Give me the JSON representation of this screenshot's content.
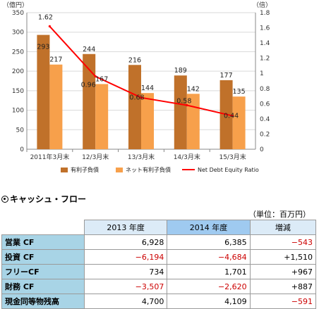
{
  "chart_data": {
    "type": "bar",
    "categories": [
      "2011年3月末",
      "12/3月末",
      "13/3月末",
      "14/3月末",
      "15/3月末"
    ],
    "y_left": {
      "label": "（億円）",
      "range": [
        0,
        350
      ],
      "ticks": [
        "0",
        "50",
        "100",
        "150",
        "200",
        "250",
        "300",
        "350"
      ]
    },
    "y_right": {
      "label": "（倍）",
      "range": [
        0,
        1.8
      ],
      "ticks": [
        "0",
        "0.2",
        "0.4",
        "0.6",
        "0.8",
        "1",
        "1.2",
        "1.4",
        "1.6",
        "1.8"
      ]
    },
    "series": [
      {
        "name": "有利子負債",
        "type": "bar",
        "axis": "left",
        "color": "#c0712a",
        "values": [
          293,
          244,
          216,
          189,
          177
        ]
      },
      {
        "name": "ネット有利子負債",
        "type": "bar",
        "axis": "left",
        "color": "#f7a04b",
        "values": [
          217,
          167,
          144,
          142,
          135
        ]
      },
      {
        "name": "Net Debt Equity Ratio",
        "type": "line",
        "axis": "right",
        "color": "#ff0000",
        "values": [
          1.62,
          0.96,
          0.68,
          0.58,
          0.44
        ],
        "labels": [
          "1.62",
          "0.96",
          "0.68",
          "0.58",
          "0.44"
        ]
      }
    ],
    "grid": true,
    "legend": "bottom"
  },
  "cashflow": {
    "title": "キャッシュ・フロー",
    "unit": "（単位：百万円）",
    "headers": [
      "2013 年度",
      "2014 年度",
      "増減"
    ],
    "rows": [
      {
        "label": "営業 CF",
        "v2013": "6,928",
        "v2014": "6,385",
        "change": "−543",
        "neg2013": false,
        "neg2014": false,
        "negChange": true
      },
      {
        "label": "投資 CF",
        "v2013": "−6,194",
        "v2014": "−4,684",
        "change": "+1,510",
        "neg2013": true,
        "neg2014": true,
        "negChange": false
      },
      {
        "label": "フリーCF",
        "v2013": "734",
        "v2014": "1,701",
        "change": "+967",
        "neg2013": false,
        "neg2014": false,
        "negChange": false
      },
      {
        "label": "財務 CF",
        "v2013": "−3,507",
        "v2014": "−2,620",
        "change": "+887",
        "neg2013": true,
        "neg2014": true,
        "negChange": false
      },
      {
        "label": "現金同等物残高",
        "v2013": "4,700",
        "v2014": "4,109",
        "change": "−591",
        "neg2013": false,
        "neg2014": false,
        "negChange": true
      }
    ]
  }
}
